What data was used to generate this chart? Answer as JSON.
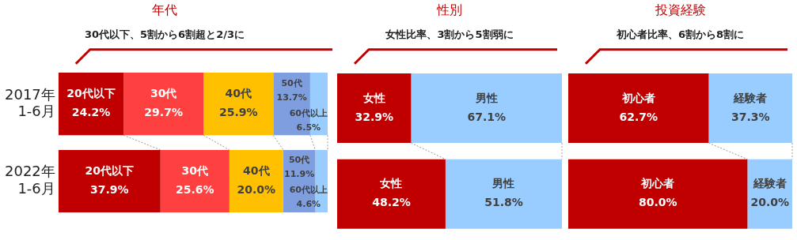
{
  "chart_data": [
    {
      "type": "bar",
      "orientation": "horizontal",
      "stacked": true,
      "title": "年代",
      "annotations": [
        "30代以下、5割から6割超と2/3に"
      ],
      "categories": [
        "2017年\n1-6月",
        "2022年\n1-6月"
      ],
      "tick_labels": "y",
      "legend": false,
      "series": [
        {
          "name": "20代以下",
          "color": "#c00000",
          "values": [
            24.2,
            37.9
          ],
          "value_labels": [
            "24.2%",
            "37.9%"
          ]
        },
        {
          "name": "30代",
          "color": "#ff4040",
          "values": [
            29.7,
            25.6
          ],
          "value_labels": [
            "29.7%",
            "25.6%"
          ]
        },
        {
          "name": "40代",
          "color": "#ffc000",
          "values": [
            25.9,
            20.0
          ],
          "value_labels": [
            "25.9%",
            "20.0%"
          ]
        },
        {
          "name": "50代",
          "color": "#7f9ee0",
          "values": [
            13.7,
            11.9
          ],
          "value_labels": [
            "13.7%",
            "11.9%"
          ]
        },
        {
          "name": "60代以上",
          "color": "#99ccff",
          "values": [
            6.5,
            4.6
          ],
          "value_labels": [
            "6.5%",
            "4.6%"
          ]
        }
      ]
    },
    {
      "type": "bar",
      "orientation": "horizontal",
      "stacked": true,
      "title": "性別",
      "annotations": [
        "女性比率、3割から5割弱に"
      ],
      "categories": [
        null,
        null
      ],
      "tick_labels": false,
      "legend": false,
      "series": [
        {
          "name": "女性",
          "color": "#c00000",
          "values": [
            32.9,
            48.2
          ],
          "value_labels": [
            "32.9%",
            "48.2%"
          ]
        },
        {
          "name": "男性",
          "color": "#99ccff",
          "values": [
            67.1,
            51.8
          ],
          "value_labels": [
            "67.1%",
            "51.8%"
          ]
        }
      ]
    },
    {
      "type": "bar",
      "orientation": "horizontal",
      "stacked": true,
      "title": "投資経験",
      "annotations": [
        "初心者比率、6割から8割に"
      ],
      "categories": [
        null,
        null
      ],
      "tick_labels": false,
      "legend": false,
      "series": [
        {
          "name": "初心者",
          "color": "#c00000",
          "values": [
            62.7,
            80.0
          ],
          "value_labels": [
            "62.7%",
            "80.0%"
          ]
        },
        {
          "name": "経験者",
          "color": "#99ccff",
          "values": [
            37.3,
            20.0
          ],
          "value_labels": [
            "37.3%",
            "20.0%"
          ]
        }
      ]
    }
  ]
}
